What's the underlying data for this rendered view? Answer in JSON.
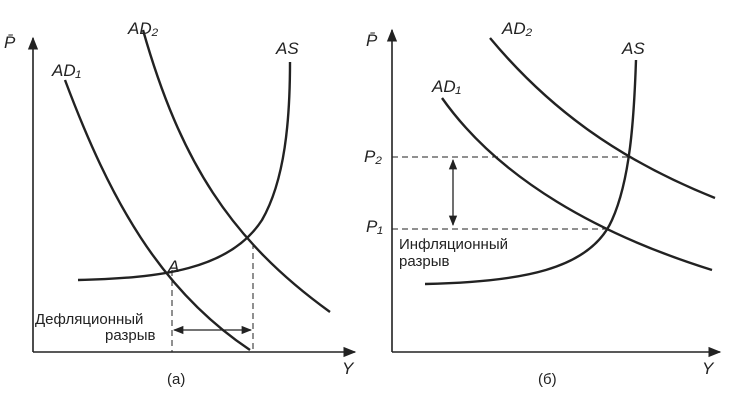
{
  "panel_a": {
    "y_axis_label": "P̄",
    "x_axis_label": "Y",
    "ad1_label": "AD₁",
    "ad2_label": "AD₂",
    "as_label": "AS",
    "point_label": "A",
    "gap_label": [
      "Дефляционный",
      "разрыв"
    ],
    "caption": "(а)"
  },
  "panel_b": {
    "y_axis_label": "P̄",
    "x_axis_label": "Y",
    "ad1_label": "AD₁",
    "ad2_label": "AD₂",
    "as_label": "AS",
    "p2_label": "P₂",
    "p1_label": "P₁",
    "gap_label": [
      "Инфляционный",
      "разрыв"
    ],
    "caption": "(б)"
  }
}
